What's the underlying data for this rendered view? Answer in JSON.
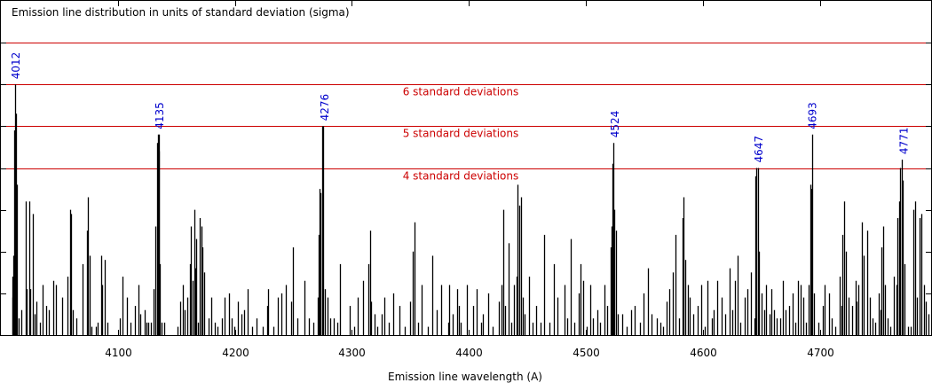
{
  "chart_data": {
    "type": "bar",
    "title": "Emission line distribution in units of standard deviation (sigma)",
    "xlabel": "Emission line wavelength (A)",
    "ylabel": "",
    "xlim": [
      4000,
      4795
    ],
    "ylim": [
      0,
      8
    ],
    "x_ticks": [
      4100,
      4200,
      4300,
      4400,
      4500,
      4600,
      4700
    ],
    "grid": false,
    "threshold_lines": [
      {
        "value": 7,
        "label": ""
      },
      {
        "value": 6,
        "label": "6 standard deviations"
      },
      {
        "value": 5,
        "label": "5 standard deviations"
      },
      {
        "value": 4,
        "label": "4 standard deviations"
      }
    ],
    "peak_labels": [
      {
        "x": 4012,
        "label": "4012"
      },
      {
        "x": 4135,
        "label": "4135"
      },
      {
        "x": 4276,
        "label": "4276"
      },
      {
        "x": 4524,
        "label": "4524"
      },
      {
        "x": 4647,
        "label": "4647"
      },
      {
        "x": 4693,
        "label": "4693"
      },
      {
        "x": 4771,
        "label": "4771"
      }
    ],
    "lines": [
      [
        4009.5,
        0.9
      ],
      [
        4010.2,
        1.4
      ],
      [
        4010.9,
        1.9
      ],
      [
        4011.6,
        4.9
      ],
      [
        4012.1,
        6.0
      ],
      [
        4012.7,
        5.3
      ],
      [
        4013.4,
        3.6
      ],
      [
        4015.2,
        0.4
      ],
      [
        4017.5,
        0.6
      ],
      [
        4021.6,
        3.2
      ],
      [
        4022.3,
        1.1
      ],
      [
        4024.5,
        3.2
      ],
      [
        4025.1,
        1.1
      ],
      [
        4027.1,
        2.9
      ],
      [
        4028.5,
        0.5
      ],
      [
        4030.1,
        0.8
      ],
      [
        4033.3,
        0.3
      ],
      [
        4035.9,
        1.2
      ],
      [
        4038.8,
        0.7
      ],
      [
        4041.2,
        0.6
      ],
      [
        4044.4,
        1.3
      ],
      [
        4047.4,
        1.2
      ],
      [
        4052.5,
        0.9
      ],
      [
        4056.8,
        1.4
      ],
      [
        4059.3,
        3.0
      ],
      [
        4060.1,
        2.9
      ],
      [
        4061.6,
        0.6
      ],
      [
        4064.5,
        0.4
      ],
      [
        4070.1,
        1.7
      ],
      [
        4073.8,
        2.5
      ],
      [
        4074.5,
        3.3
      ],
      [
        4075.7,
        1.9
      ],
      [
        4077.6,
        0.2
      ],
      [
        4080.8,
        0.2
      ],
      [
        4082.9,
        0.3
      ],
      [
        4085.7,
        1.9
      ],
      [
        4086.6,
        1.2
      ],
      [
        4088.6,
        1.8
      ],
      [
        4090.7,
        0.3
      ],
      [
        4101.3,
        0.4
      ],
      [
        4103.6,
        1.4
      ],
      [
        4107.8,
        0.9
      ],
      [
        4110.8,
        0.3
      ],
      [
        4114.7,
        0.7
      ],
      [
        4117.4,
        1.2
      ],
      [
        4119.2,
        0.5
      ],
      [
        4122.6,
        0.6
      ],
      [
        4124.6,
        0.3
      ],
      [
        4125.6,
        0.3
      ],
      [
        4128.3,
        0.3
      ],
      [
        4130.4,
        1.1
      ],
      [
        4132.0,
        2.6
      ],
      [
        4133.2,
        4.6
      ],
      [
        4133.9,
        4.8
      ],
      [
        4134.7,
        4.8
      ],
      [
        4135.2,
        4.4
      ],
      [
        4135.8,
        1.7
      ],
      [
        4137.6,
        0.3
      ],
      [
        4139.5,
        0.3
      ],
      [
        4150.7,
        0.2
      ],
      [
        4153.4,
        0.8
      ],
      [
        4155.3,
        1.2
      ],
      [
        4157.2,
        0.6
      ],
      [
        4159.3,
        0.9
      ],
      [
        4161.2,
        1.7
      ],
      [
        4162.3,
        2.6
      ],
      [
        4164.1,
        1.3
      ],
      [
        4165.2,
        3.0
      ],
      [
        4166.2,
        1.6
      ],
      [
        4167.2,
        2.3
      ],
      [
        4168.5,
        0.3
      ],
      [
        4170.1,
        2.8
      ],
      [
        4171.1,
        2.6
      ],
      [
        4172.2,
        2.1
      ],
      [
        4173.6,
        1.5
      ],
      [
        4177.4,
        0.4
      ],
      [
        4180.0,
        0.9
      ],
      [
        4182.8,
        0.3
      ],
      [
        4185.4,
        0.2
      ],
      [
        4188.6,
        0.4
      ],
      [
        4191.3,
        0.9
      ],
      [
        4194.6,
        1.0
      ],
      [
        4197.1,
        0.4
      ],
      [
        4199.8,
        0.2
      ],
      [
        4202.5,
        0.8
      ],
      [
        4205.5,
        0.5
      ],
      [
        4208.0,
        0.6
      ],
      [
        4210.9,
        1.1
      ],
      [
        4214.7,
        0.2
      ],
      [
        4218.2,
        0.4
      ],
      [
        4223.7,
        0.2
      ],
      [
        4227.3,
        0.7
      ],
      [
        4228.6,
        1.1
      ],
      [
        4232.6,
        0.2
      ],
      [
        4236.4,
        0.9
      ],
      [
        4239.6,
        1.0
      ],
      [
        4243.7,
        1.2
      ],
      [
        4247.7,
        0.8
      ],
      [
        4249.7,
        2.1
      ],
      [
        4253.4,
        0.4
      ],
      [
        4259.2,
        1.3
      ],
      [
        4263.4,
        0.4
      ],
      [
        4266.8,
        0.3
      ],
      [
        4270.6,
        0.9
      ],
      [
        4271.9,
        2.4
      ],
      [
        4272.5,
        3.5
      ],
      [
        4273.3,
        3.4
      ],
      [
        4274.3,
        5.0
      ],
      [
        4275.7,
        5.0
      ],
      [
        4277.1,
        1.1
      ],
      [
        4278.9,
        0.9
      ],
      [
        4281.3,
        0.4
      ],
      [
        4284.6,
        0.4
      ],
      [
        4287.8,
        0.3
      ],
      [
        4289.9,
        1.7
      ],
      [
        4298.1,
        0.7
      ],
      [
        4301.7,
        0.2
      ],
      [
        4305.2,
        0.9
      ],
      [
        4309.8,
        1.3
      ],
      [
        4313.9,
        1.7
      ],
      [
        4315.3,
        2.5
      ],
      [
        4316.6,
        0.8
      ],
      [
        4319.5,
        0.5
      ],
      [
        4322.0,
        0.2
      ],
      [
        4325.4,
        0.5
      ],
      [
        4327.9,
        0.9
      ],
      [
        4331.3,
        0.3
      ],
      [
        4335.6,
        1.0
      ],
      [
        4340.4,
        0.7
      ],
      [
        4345.5,
        0.2
      ],
      [
        4349.7,
        0.8
      ],
      [
        4352.3,
        2.0
      ],
      [
        4353.6,
        2.7
      ],
      [
        4356.4,
        0.3
      ],
      [
        4359.6,
        1.2
      ],
      [
        4364.6,
        0.2
      ],
      [
        4368.5,
        1.9
      ],
      [
        4372.6,
        0.6
      ],
      [
        4376.6,
        1.2
      ],
      [
        4382.2,
        0.3
      ],
      [
        4383.4,
        1.2
      ],
      [
        4386.4,
        0.5
      ],
      [
        4389.7,
        1.1
      ],
      [
        4391.2,
        0.7
      ],
      [
        4393.2,
        0.3
      ],
      [
        4398.5,
        1.2
      ],
      [
        4403.5,
        0.7
      ],
      [
        4406.9,
        1.1
      ],
      [
        4410.2,
        0.3
      ],
      [
        4411.9,
        0.5
      ],
      [
        4416.7,
        1.0
      ],
      [
        4420.4,
        0.2
      ],
      [
        4425.6,
        0.8
      ],
      [
        4427.9,
        1.2
      ],
      [
        4429.5,
        3.0
      ],
      [
        4430.8,
        0.7
      ],
      [
        4433.6,
        2.2
      ],
      [
        4436.1,
        0.3
      ],
      [
        4438.5,
        1.2
      ],
      [
        4440.6,
        1.4
      ],
      [
        4441.7,
        3.6
      ],
      [
        4442.8,
        3.1
      ],
      [
        4444.4,
        3.3
      ],
      [
        4446.1,
        0.9
      ],
      [
        4447.9,
        0.5
      ],
      [
        4451.6,
        1.4
      ],
      [
        4454.2,
        0.3
      ],
      [
        4457.6,
        0.7
      ],
      [
        4461.1,
        0.3
      ],
      [
        4464.6,
        2.4
      ],
      [
        4468.5,
        0.3
      ],
      [
        4472.3,
        1.7
      ],
      [
        4475.8,
        0.9
      ],
      [
        4481.4,
        1.2
      ],
      [
        4484.2,
        0.4
      ],
      [
        4487.3,
        2.3
      ],
      [
        4490.1,
        0.3
      ],
      [
        4493.6,
        1.0
      ],
      [
        4495.3,
        1.7
      ],
      [
        4497.7,
        1.3
      ],
      [
        4500.4,
        0.2
      ],
      [
        4503.4,
        1.2
      ],
      [
        4506.3,
        0.4
      ],
      [
        4509.8,
        0.6
      ],
      [
        4512.4,
        0.3
      ],
      [
        4515.6,
        1.2
      ],
      [
        4518.1,
        0.7
      ],
      [
        4521.1,
        2.1
      ],
      [
        4521.9,
        2.6
      ],
      [
        4522.6,
        4.1
      ],
      [
        4523.5,
        4.6
      ],
      [
        4524.3,
        3.0
      ],
      [
        4525.6,
        2.5
      ],
      [
        4527.0,
        0.5
      ],
      [
        4531.3,
        0.5
      ],
      [
        4535.1,
        0.2
      ],
      [
        4538.6,
        0.6
      ],
      [
        4541.6,
        0.7
      ],
      [
        4546.1,
        0.3
      ],
      [
        4549.2,
        1.0
      ],
      [
        4552.7,
        1.6
      ],
      [
        4556.1,
        0.5
      ],
      [
        4560.6,
        0.4
      ],
      [
        4563.8,
        0.3
      ],
      [
        4565.7,
        0.2
      ],
      [
        4568.8,
        0.8
      ],
      [
        4571.1,
        1.1
      ],
      [
        4574.2,
        1.5
      ],
      [
        4576.6,
        2.4
      ],
      [
        4579.7,
        0.4
      ],
      [
        4582.5,
        2.8
      ],
      [
        4583.4,
        3.3
      ],
      [
        4584.9,
        1.8
      ],
      [
        4586.9,
        1.2
      ],
      [
        4588.8,
        0.9
      ],
      [
        4591.7,
        0.5
      ],
      [
        4595.6,
        0.7
      ],
      [
        4598.8,
        1.2
      ],
      [
        4601.8,
        0.2
      ],
      [
        4603.7,
        1.3
      ],
      [
        4607.4,
        0.4
      ],
      [
        4609.5,
        0.6
      ],
      [
        4612.1,
        1.3
      ],
      [
        4616.2,
        0.9
      ],
      [
        4619.3,
        0.5
      ],
      [
        4622.5,
        1.6
      ],
      [
        4625.4,
        0.6
      ],
      [
        4627.6,
        1.3
      ],
      [
        4629.4,
        1.9
      ],
      [
        4631.7,
        0.3
      ],
      [
        4635.6,
        0.9
      ],
      [
        4638.1,
        1.1
      ],
      [
        4641.0,
        1.5
      ],
      [
        4643.8,
        0.4
      ],
      [
        4644.6,
        3.8
      ],
      [
        4645.5,
        4.0
      ],
      [
        4646.7,
        4.0
      ],
      [
        4648.0,
        2.0
      ],
      [
        4649.9,
        1.0
      ],
      [
        4652.1,
        0.6
      ],
      [
        4653.9,
        1.2
      ],
      [
        4656.6,
        0.5
      ],
      [
        4658.5,
        1.1
      ],
      [
        4661.0,
        0.6
      ],
      [
        4663.2,
        0.4
      ],
      [
        4665.9,
        0.4
      ],
      [
        4668.1,
        1.3
      ],
      [
        4670.6,
        0.6
      ],
      [
        4673.6,
        0.7
      ],
      [
        4676.5,
        1.0
      ],
      [
        4679.1,
        0.3
      ],
      [
        4681.1,
        1.3
      ],
      [
        4683.7,
        1.2
      ],
      [
        4685.4,
        0.9
      ],
      [
        4687.9,
        0.3
      ],
      [
        4690.5,
        1.2
      ],
      [
        4691.9,
        3.6
      ],
      [
        4692.7,
        3.5
      ],
      [
        4693.5,
        4.8
      ],
      [
        4695.2,
        1.0
      ],
      [
        4698.3,
        0.3
      ],
      [
        4702.2,
        0.7
      ],
      [
        4704.3,
        1.2
      ],
      [
        4708.1,
        1.0
      ],
      [
        4710.3,
        0.4
      ],
      [
        4713.4,
        0.2
      ],
      [
        4716.5,
        1.4
      ],
      [
        4718.2,
        0.7
      ],
      [
        4719.3,
        2.4
      ],
      [
        4720.8,
        3.2
      ],
      [
        4722.3,
        2.0
      ],
      [
        4724.6,
        0.9
      ],
      [
        4727.2,
        0.7
      ],
      [
        4730.3,
        1.3
      ],
      [
        4731.1,
        0.8
      ],
      [
        4732.6,
        1.2
      ],
      [
        4735.9,
        2.7
      ],
      [
        4737.2,
        1.9
      ],
      [
        4740.6,
        2.5
      ],
      [
        4742.8,
        0.9
      ],
      [
        4745.2,
        0.4
      ],
      [
        4747.3,
        0.3
      ],
      [
        4750.3,
        1.0
      ],
      [
        4751.4,
        0.6
      ],
      [
        4752.6,
        2.1
      ],
      [
        4753.8,
        2.6
      ],
      [
        4755.2,
        1.2
      ],
      [
        4757.6,
        0.4
      ],
      [
        4760.3,
        0.2
      ],
      [
        4763.2,
        1.4
      ],
      [
        4765.5,
        1.2
      ],
      [
        4766.5,
        2.8
      ],
      [
        4767.5,
        3.2
      ],
      [
        4768.5,
        4.0
      ],
      [
        4769.7,
        4.2
      ],
      [
        4770.6,
        3.7
      ],
      [
        4772.2,
        1.7
      ],
      [
        4774.9,
        0.2
      ],
      [
        4777.3,
        0.2
      ],
      [
        4779.5,
        3.0
      ],
      [
        4781.1,
        3.2
      ],
      [
        4782.6,
        0.9
      ],
      [
        4785.2,
        2.8
      ],
      [
        4786.6,
        2.9
      ],
      [
        4788.9,
        1.2
      ],
      [
        4790.3,
        0.8
      ],
      [
        4792.5,
        0.5
      ]
    ]
  },
  "colors": {
    "background": "#ffffff",
    "axis": "#000000",
    "bars": "#000000",
    "threshold": "#cc0000",
    "threshold_text": "#cc0000",
    "peak_text": "#0000cc"
  }
}
